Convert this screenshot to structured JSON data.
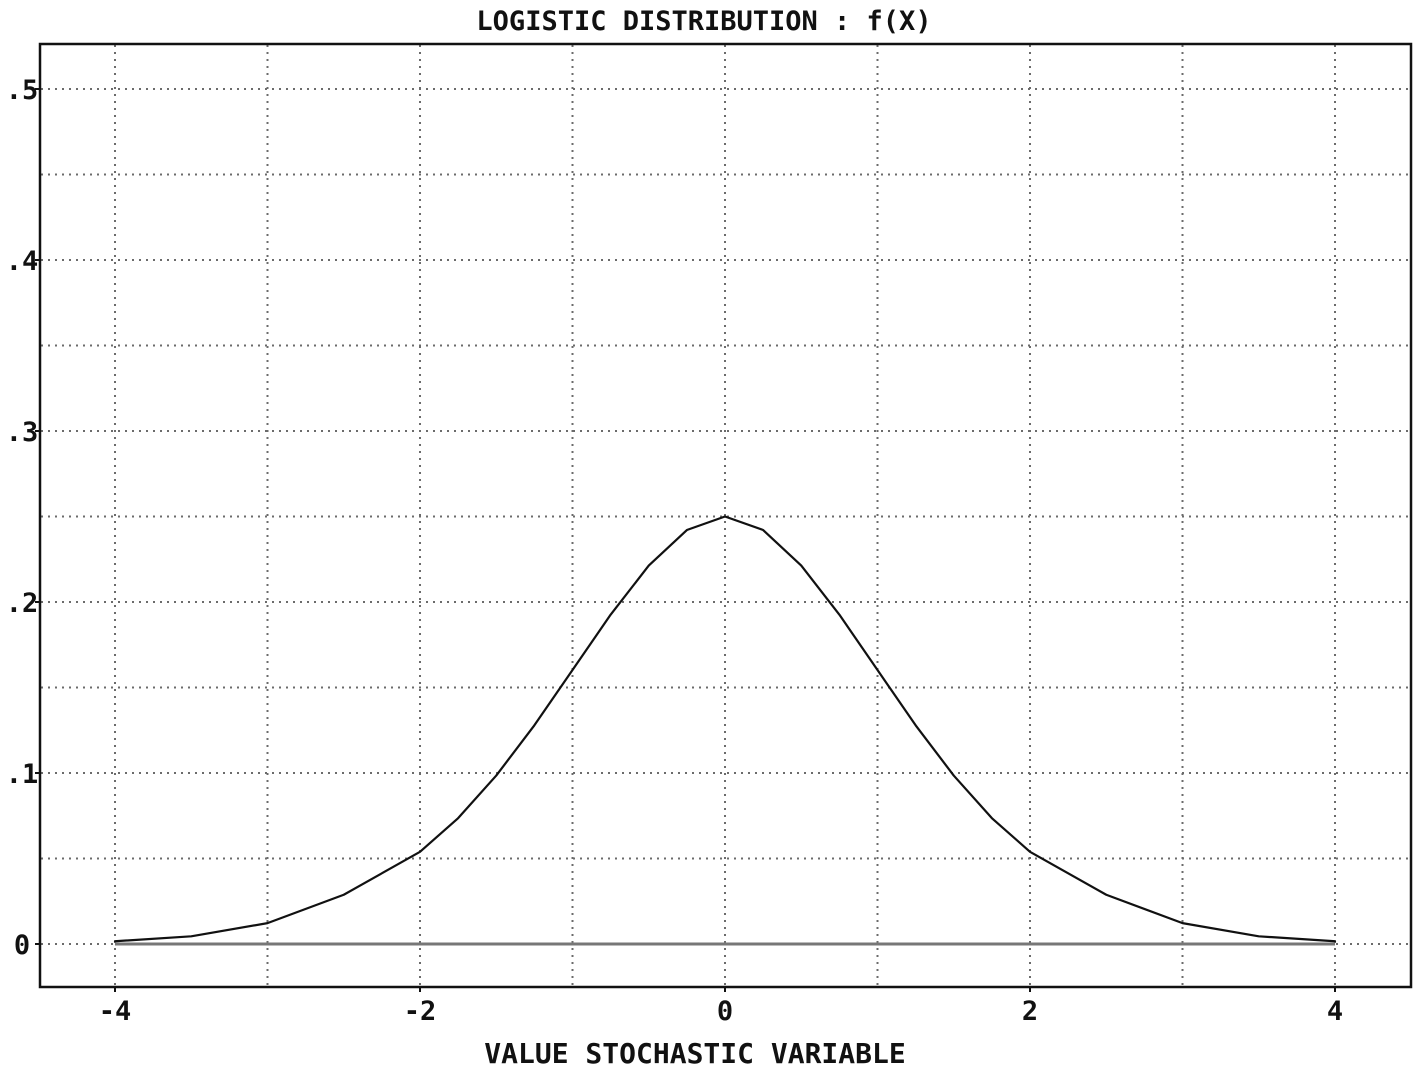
{
  "chart_data": {
    "type": "line",
    "title": "LOGISTIC DISTRIBUTION : f(X)",
    "xlabel": "VALUE STOCHASTIC VARIABLE",
    "ylabel": "",
    "xlim": [
      -4,
      4
    ],
    "ylim": [
      -0.025,
      0.525
    ],
    "x_ticks": [
      -4,
      -2,
      0,
      2,
      4
    ],
    "x_tick_labels": [
      "-4",
      "-2",
      "0",
      "2",
      "4"
    ],
    "y_ticks": [
      0,
      0.1,
      0.2,
      0.3,
      0.4,
      0.5
    ],
    "y_tick_labels": [
      "0",
      ".1",
      ".2",
      ".3",
      ".4",
      ".5"
    ],
    "grid": true,
    "grid_x_step": 1,
    "grid_y_step": 0.05,
    "legend": "none",
    "colors": {
      "line": "#111111",
      "grid": "#6b6b6b",
      "frame": "#111111",
      "baseline": "#777777"
    },
    "series": [
      {
        "x": [
          -4,
          -3.5,
          -3,
          -2.5,
          -2,
          -1.75,
          -1.5,
          -1.25,
          -1,
          -0.75,
          -0.5,
          -0.25,
          0,
          0.25,
          0.5,
          0.75,
          1,
          1.25,
          1.5,
          1.75,
          2,
          2.5,
          3,
          3.5,
          4
        ],
        "values": [
          0.0016,
          0.0045,
          0.0122,
          0.0288,
          0.0539,
          0.0736,
          0.0985,
          0.1279,
          0.1602,
          0.1926,
          0.2213,
          0.2421,
          0.25,
          0.2421,
          0.2213,
          0.1926,
          0.1602,
          0.1279,
          0.0985,
          0.0736,
          0.0539,
          0.0288,
          0.0122,
          0.0045,
          0.0016
        ]
      }
    ]
  }
}
